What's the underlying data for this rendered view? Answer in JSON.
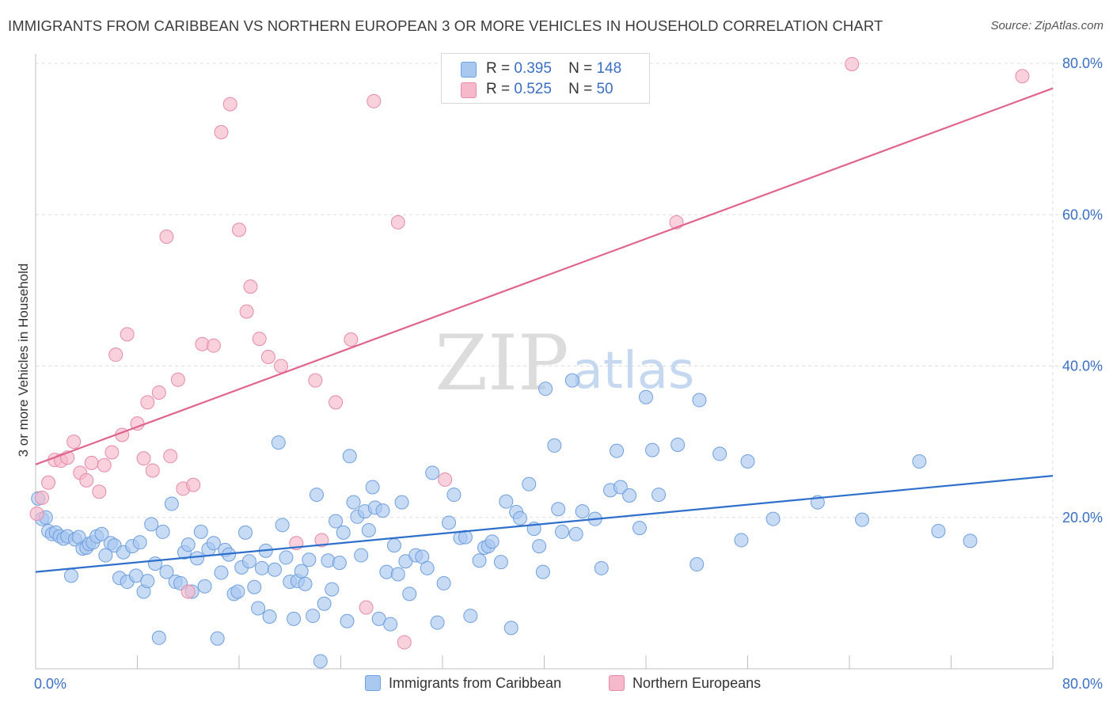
{
  "title": "IMMIGRANTS FROM CARIBBEAN VS NORTHERN EUROPEAN 3 OR MORE VEHICLES IN HOUSEHOLD CORRELATION CHART",
  "source": "Source: ZipAtlas.com",
  "watermark": {
    "zip": "ZIP",
    "atlas": "atlas"
  },
  "legend_top": {
    "series1": {
      "r_label": "R =",
      "r_value": "0.395",
      "n_label": "N =",
      "n_value": "148"
    },
    "series2": {
      "r_label": "R =",
      "r_value": "0.525",
      "n_label": "N =",
      "n_value": "50"
    }
  },
  "legend_bottom": {
    "series1": "Immigrants from Caribbean",
    "series2": "Northern Europeans"
  },
  "colors": {
    "blue_fill": "#a9c8f0",
    "blue_stroke": "#6f9fde",
    "blue_line": "#2f6fcc",
    "pink_fill": "#f6b8cb",
    "pink_stroke": "#e58aa8",
    "pink_line": "#e0648e",
    "tick_text": "#3a6fc6"
  },
  "chart_data": {
    "type": "scatter",
    "title": "IMMIGRANTS FROM CARIBBEAN VS NORTHERN EUROPEAN 3 OR MORE VEHICLES IN HOUSEHOLD CORRELATION CHART",
    "xlabel": "",
    "ylabel": "3 or more Vehicles in Household",
    "xlim": [
      0,
      80
    ],
    "ylim": [
      0,
      80
    ],
    "x_tick_labels": [
      "0.0%",
      "80.0%"
    ],
    "y_ticks": [
      20,
      40,
      60,
      80
    ],
    "y_tick_labels": [
      "20.0%",
      "40.0%",
      "60.0%",
      "80.0%"
    ],
    "grid": true,
    "series": [
      {
        "name": "Immigrants from Caribbean",
        "r": 0.395,
        "n": 148,
        "trend": {
          "x": [
            0,
            80
          ],
          "y": [
            12.8,
            25.5
          ]
        },
        "points": [
          [
            0.2,
            22.5
          ],
          [
            0.5,
            19.8
          ],
          [
            0.8,
            20.0
          ],
          [
            1.0,
            18.2
          ],
          [
            1.3,
            17.8
          ],
          [
            1.6,
            18.0
          ],
          [
            1.9,
            17.5
          ],
          [
            2.2,
            17.2
          ],
          [
            2.5,
            17.5
          ],
          [
            2.8,
            12.3
          ],
          [
            3.1,
            17.1
          ],
          [
            3.4,
            17.4
          ],
          [
            3.7,
            15.9
          ],
          [
            4.0,
            16.0
          ],
          [
            4.2,
            16.5
          ],
          [
            4.5,
            16.7
          ],
          [
            4.8,
            17.5
          ],
          [
            5.2,
            17.8
          ],
          [
            5.5,
            15.0
          ],
          [
            5.9,
            16.6
          ],
          [
            6.2,
            16.3
          ],
          [
            6.6,
            12.0
          ],
          [
            6.9,
            15.4
          ],
          [
            7.2,
            11.5
          ],
          [
            7.6,
            16.2
          ],
          [
            7.9,
            12.3
          ],
          [
            8.2,
            16.7
          ],
          [
            8.5,
            10.2
          ],
          [
            8.8,
            11.6
          ],
          [
            9.1,
            19.1
          ],
          [
            9.4,
            13.9
          ],
          [
            9.7,
            4.1
          ],
          [
            10.0,
            18.1
          ],
          [
            10.3,
            12.8
          ],
          [
            10.7,
            21.8
          ],
          [
            11.0,
            11.5
          ],
          [
            11.4,
            11.3
          ],
          [
            11.7,
            15.4
          ],
          [
            12.0,
            16.4
          ],
          [
            12.3,
            10.2
          ],
          [
            12.7,
            14.6
          ],
          [
            13.0,
            18.1
          ],
          [
            13.3,
            10.9
          ],
          [
            13.6,
            15.8
          ],
          [
            14.0,
            16.6
          ],
          [
            14.3,
            4.0
          ],
          [
            14.6,
            12.7
          ],
          [
            14.9,
            15.7
          ],
          [
            15.2,
            15.1
          ],
          [
            15.6,
            9.9
          ],
          [
            15.9,
            10.2
          ],
          [
            16.2,
            13.4
          ],
          [
            16.5,
            18.0
          ],
          [
            16.8,
            14.2
          ],
          [
            17.2,
            10.8
          ],
          [
            17.5,
            8.0
          ],
          [
            17.8,
            13.3
          ],
          [
            18.1,
            15.6
          ],
          [
            18.4,
            6.9
          ],
          [
            18.8,
            13.1
          ],
          [
            19.1,
            29.9
          ],
          [
            19.4,
            19.0
          ],
          [
            19.7,
            14.7
          ],
          [
            20.0,
            11.5
          ],
          [
            20.3,
            6.6
          ],
          [
            20.6,
            11.6
          ],
          [
            20.9,
            12.9
          ],
          [
            21.2,
            11.2
          ],
          [
            21.5,
            14.4
          ],
          [
            21.8,
            7.0
          ],
          [
            22.1,
            23.0
          ],
          [
            22.4,
            1.0
          ],
          [
            22.7,
            8.6
          ],
          [
            23.0,
            14.3
          ],
          [
            23.3,
            10.5
          ],
          [
            23.6,
            19.5
          ],
          [
            23.9,
            14.0
          ],
          [
            24.2,
            18.0
          ],
          [
            24.5,
            6.3
          ],
          [
            24.7,
            28.1
          ],
          [
            25.0,
            22.0
          ],
          [
            25.3,
            20.1
          ],
          [
            25.6,
            15.0
          ],
          [
            25.9,
            20.8
          ],
          [
            26.2,
            18.3
          ],
          [
            26.5,
            24.0
          ],
          [
            26.7,
            21.3
          ],
          [
            27.0,
            6.6
          ],
          [
            27.3,
            20.9
          ],
          [
            27.6,
            12.8
          ],
          [
            27.9,
            5.9
          ],
          [
            28.2,
            16.3
          ],
          [
            28.5,
            12.5
          ],
          [
            28.8,
            22.0
          ],
          [
            29.1,
            14.2
          ],
          [
            29.4,
            9.9
          ],
          [
            29.9,
            15.0
          ],
          [
            30.4,
            14.8
          ],
          [
            30.8,
            13.3
          ],
          [
            31.2,
            25.9
          ],
          [
            31.6,
            6.1
          ],
          [
            32.1,
            11.3
          ],
          [
            32.5,
            19.3
          ],
          [
            32.9,
            23.0
          ],
          [
            33.4,
            17.3
          ],
          [
            33.8,
            17.4
          ],
          [
            34.2,
            7.0
          ],
          [
            34.9,
            14.3
          ],
          [
            35.3,
            16.0
          ],
          [
            35.6,
            16.2
          ],
          [
            35.9,
            16.8
          ],
          [
            36.6,
            14.1
          ],
          [
            37.0,
            22.1
          ],
          [
            37.4,
            5.4
          ],
          [
            37.8,
            20.7
          ],
          [
            38.1,
            19.9
          ],
          [
            38.8,
            24.4
          ],
          [
            39.2,
            18.5
          ],
          [
            39.6,
            16.2
          ],
          [
            39.9,
            12.8
          ],
          [
            40.1,
            37.0
          ],
          [
            40.8,
            29.5
          ],
          [
            41.1,
            21.1
          ],
          [
            41.4,
            18.1
          ],
          [
            42.2,
            38.1
          ],
          [
            42.5,
            17.8
          ],
          [
            43.0,
            20.8
          ],
          [
            44.0,
            19.8
          ],
          [
            44.5,
            13.3
          ],
          [
            45.2,
            23.6
          ],
          [
            45.7,
            28.8
          ],
          [
            46.0,
            24.0
          ],
          [
            46.7,
            22.9
          ],
          [
            47.5,
            18.6
          ],
          [
            48.0,
            35.9
          ],
          [
            48.5,
            28.9
          ],
          [
            49.0,
            23.0
          ],
          [
            50.5,
            29.6
          ],
          [
            52.0,
            13.8
          ],
          [
            52.2,
            35.5
          ],
          [
            53.8,
            28.4
          ],
          [
            55.5,
            17.0
          ],
          [
            56.0,
            27.4
          ],
          [
            58.0,
            19.8
          ],
          [
            61.5,
            22.0
          ],
          [
            65.0,
            19.7
          ],
          [
            69.5,
            27.4
          ],
          [
            71.0,
            18.2
          ],
          [
            73.5,
            16.9
          ]
        ]
      },
      {
        "name": "Northern Europeans",
        "r": 0.525,
        "n": 50,
        "trend": {
          "x": [
            0,
            80
          ],
          "y": [
            27.0,
            76.7
          ]
        },
        "points": [
          [
            0.1,
            20.5
          ],
          [
            0.5,
            22.6
          ],
          [
            1.0,
            24.6
          ],
          [
            1.5,
            27.6
          ],
          [
            2.0,
            27.5
          ],
          [
            2.5,
            27.9
          ],
          [
            3.0,
            30.0
          ],
          [
            3.5,
            25.9
          ],
          [
            4.0,
            24.9
          ],
          [
            4.4,
            27.2
          ],
          [
            5.0,
            23.4
          ],
          [
            5.4,
            26.9
          ],
          [
            6.0,
            28.6
          ],
          [
            6.3,
            41.5
          ],
          [
            6.8,
            30.9
          ],
          [
            7.2,
            44.2
          ],
          [
            8.0,
            32.4
          ],
          [
            8.5,
            27.8
          ],
          [
            8.8,
            35.2
          ],
          [
            9.2,
            26.2
          ],
          [
            9.7,
            36.5
          ],
          [
            10.3,
            57.1
          ],
          [
            10.6,
            28.1
          ],
          [
            11.2,
            38.2
          ],
          [
            11.6,
            23.8
          ],
          [
            12.0,
            10.2
          ],
          [
            12.4,
            24.3
          ],
          [
            13.1,
            42.9
          ],
          [
            14.0,
            42.7
          ],
          [
            14.6,
            70.9
          ],
          [
            15.3,
            74.6
          ],
          [
            16.0,
            58.0
          ],
          [
            16.6,
            47.2
          ],
          [
            16.9,
            50.5
          ],
          [
            17.6,
            43.6
          ],
          [
            18.3,
            41.2
          ],
          [
            19.3,
            40.0
          ],
          [
            20.5,
            16.6
          ],
          [
            22.0,
            38.1
          ],
          [
            22.5,
            17.0
          ],
          [
            23.6,
            35.2
          ],
          [
            24.8,
            43.5
          ],
          [
            26.0,
            8.1
          ],
          [
            26.6,
            75.0
          ],
          [
            28.5,
            59.0
          ],
          [
            29.0,
            3.5
          ],
          [
            32.2,
            25.0
          ],
          [
            50.4,
            59.0
          ],
          [
            64.2,
            79.9
          ],
          [
            77.6,
            78.3
          ]
        ]
      }
    ]
  }
}
